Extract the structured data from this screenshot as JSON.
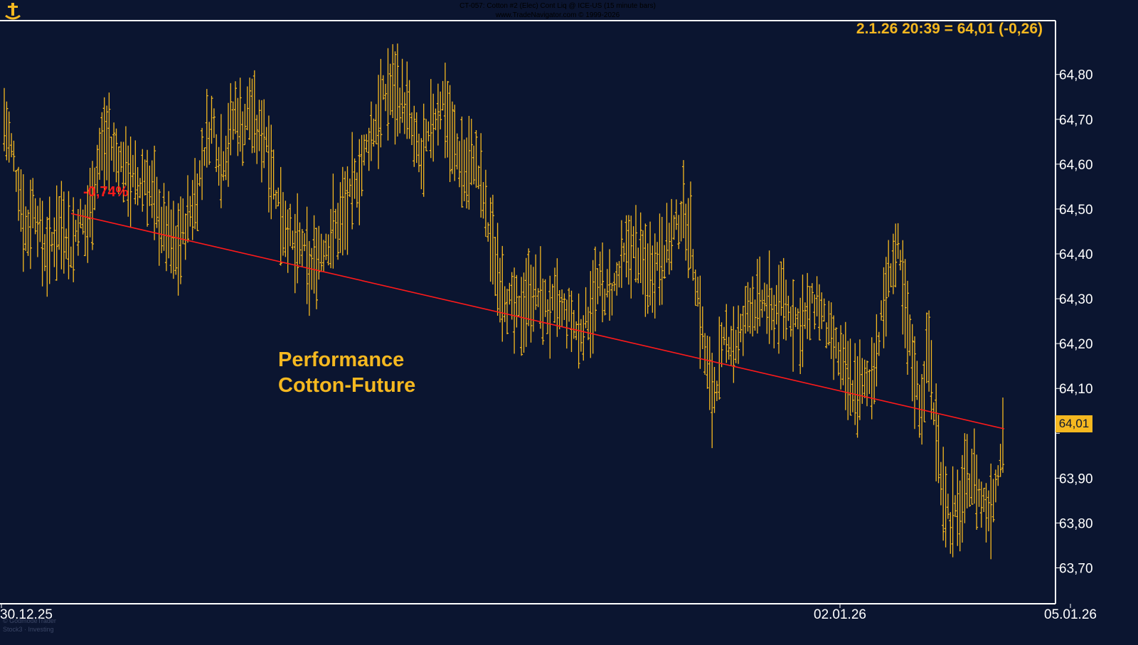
{
  "header": {
    "symbol_line": "CT-057:  Cotton #2 (Elec) Cont Liq @ ICE-US  (15 minute bars)",
    "copyright_line": "www.TradeNavigator.com © 1999-2026"
  },
  "quote": "2.1.26 20:39 = 64,01 (-0,26)",
  "overlay": {
    "line1": "Performance",
    "line2": "Cotton-Future"
  },
  "performance_label": "-0,74%",
  "last_value_label": "64,01",
  "x_labels": {
    "left": "30.12.25",
    "middle": "02.01.26",
    "right": "05.01.26"
  },
  "watermark": {
    "line1": "© GodmodeTrader",
    "line2": "Stock3 · Investing"
  },
  "colors": {
    "background": "#0b1530",
    "bars": "#f5b820",
    "trend": "#ff1a1a",
    "text": "#f5b820",
    "axis": "#ffffff"
  },
  "chart_data": {
    "type": "ohlc",
    "title": "CT-057:  Cotton #2 (Elec) Cont Liq @ ICE-US  (15 minute bars)",
    "ylim": [
      63.62,
      64.92
    ],
    "yticks": [
      63.7,
      63.8,
      63.9,
      64.0,
      64.1,
      64.2,
      64.3,
      64.4,
      64.5,
      64.6,
      64.7,
      64.8
    ],
    "ytick_labels": [
      "63,70",
      "63,80",
      "63,90",
      "",
      "64,10",
      "64,20",
      "64,30",
      "64,40",
      "64,50",
      "64,60",
      "64,70",
      "64,80"
    ],
    "x_tick_labels": [
      "30.12.25",
      "02.01.26",
      "05.01.26"
    ],
    "trend_line": {
      "start_value": 64.49,
      "end_value": 64.01,
      "change": "-0,74%"
    },
    "last": {
      "time": "2.1.26 20:39",
      "value": 64.01,
      "change": -0.26
    },
    "grid": false,
    "series": [
      {
        "anchors": [
          [
            0,
            64.7
          ],
          [
            1,
            64.63
          ],
          [
            2,
            64.55
          ],
          [
            3,
            64.44
          ],
          [
            4,
            64.52
          ],
          [
            5,
            64.43
          ],
          [
            6,
            64.4
          ],
          [
            7,
            64.46
          ],
          [
            8,
            64.47
          ],
          [
            9,
            64.41
          ],
          [
            10,
            64.48
          ],
          [
            11,
            64.45
          ],
          [
            12,
            64.55
          ],
          [
            13,
            64.64
          ],
          [
            14,
            64.65
          ],
          [
            15,
            64.62
          ],
          [
            16,
            64.6
          ],
          [
            17,
            64.57
          ],
          [
            18,
            64.55
          ],
          [
            19,
            64.58
          ],
          [
            20,
            64.52
          ],
          [
            21,
            64.47
          ],
          [
            22,
            64.44
          ],
          [
            23,
            64.4
          ],
          [
            24,
            64.45
          ],
          [
            25,
            64.5
          ],
          [
            26,
            64.55
          ],
          [
            27,
            64.65
          ],
          [
            28,
            64.7
          ],
          [
            29,
            64.6
          ],
          [
            30,
            64.65
          ],
          [
            31,
            64.72
          ],
          [
            32,
            64.68
          ],
          [
            33,
            64.73
          ],
          [
            34,
            64.66
          ],
          [
            35,
            64.68
          ],
          [
            36,
            64.58
          ],
          [
            37,
            64.5
          ],
          [
            38,
            64.46
          ],
          [
            39,
            64.4
          ],
          [
            40,
            64.42
          ],
          [
            41,
            64.35
          ],
          [
            42,
            64.4
          ],
          [
            43,
            64.42
          ],
          [
            44,
            64.45
          ],
          [
            45,
            64.47
          ],
          [
            46,
            64.5
          ],
          [
            47,
            64.55
          ],
          [
            48,
            64.6
          ],
          [
            49,
            64.66
          ],
          [
            50,
            64.7
          ],
          [
            51,
            64.75
          ],
          [
            52,
            64.77
          ],
          [
            53,
            64.75
          ],
          [
            54,
            64.73
          ],
          [
            55,
            64.65
          ],
          [
            56,
            64.6
          ],
          [
            57,
            64.66
          ],
          [
            58,
            64.72
          ],
          [
            59,
            64.75
          ],
          [
            60,
            64.65
          ],
          [
            61,
            64.62
          ],
          [
            62,
            64.58
          ],
          [
            63,
            64.62
          ],
          [
            64,
            64.55
          ],
          [
            65,
            64.45
          ],
          [
            66,
            64.38
          ],
          [
            67,
            64.32
          ],
          [
            68,
            64.28
          ],
          [
            69,
            64.26
          ],
          [
            70,
            64.3
          ],
          [
            71,
            64.32
          ],
          [
            72,
            64.3
          ],
          [
            73,
            64.27
          ],
          [
            74,
            64.28
          ],
          [
            75,
            64.27
          ],
          [
            76,
            64.26
          ],
          [
            77,
            64.22
          ],
          [
            78,
            64.25
          ],
          [
            79,
            64.3
          ],
          [
            80,
            64.33
          ],
          [
            81,
            64.31
          ],
          [
            82,
            64.33
          ],
          [
            83,
            64.38
          ],
          [
            84,
            64.42
          ],
          [
            85,
            64.4
          ],
          [
            86,
            64.36
          ],
          [
            87,
            64.37
          ],
          [
            88,
            64.4
          ],
          [
            89,
            64.42
          ],
          [
            90,
            64.45
          ],
          [
            91,
            64.5
          ],
          [
            92,
            64.45
          ],
          [
            93,
            64.32
          ],
          [
            94,
            64.18
          ],
          [
            95,
            64.08
          ],
          [
            96,
            64.15
          ],
          [
            97,
            64.22
          ],
          [
            98,
            64.2
          ],
          [
            99,
            64.22
          ],
          [
            100,
            64.3
          ],
          [
            101,
            64.28
          ],
          [
            102,
            64.3
          ],
          [
            103,
            64.26
          ],
          [
            104,
            64.3
          ],
          [
            105,
            64.28
          ],
          [
            106,
            64.26
          ],
          [
            107,
            64.24
          ],
          [
            108,
            64.27
          ],
          [
            109,
            64.3
          ],
          [
            110,
            64.25
          ],
          [
            111,
            64.2
          ],
          [
            112,
            64.17
          ],
          [
            113,
            64.12
          ],
          [
            114,
            64.1
          ],
          [
            115,
            64.1
          ],
          [
            116,
            64.11
          ],
          [
            117,
            64.18
          ],
          [
            118,
            64.28
          ],
          [
            119,
            64.38
          ],
          [
            120,
            64.4
          ],
          [
            121,
            64.25
          ],
          [
            122,
            64.15
          ],
          [
            123,
            64.05
          ],
          [
            124,
            64.2
          ],
          [
            125,
            64.0
          ],
          [
            126,
            63.88
          ],
          [
            127,
            63.8
          ],
          [
            128,
            63.82
          ],
          [
            129,
            63.88
          ],
          [
            130,
            63.92
          ],
          [
            131,
            63.85
          ],
          [
            132,
            63.83
          ],
          [
            133,
            63.88
          ],
          [
            134,
            64.01
          ]
        ]
      }
    ]
  }
}
